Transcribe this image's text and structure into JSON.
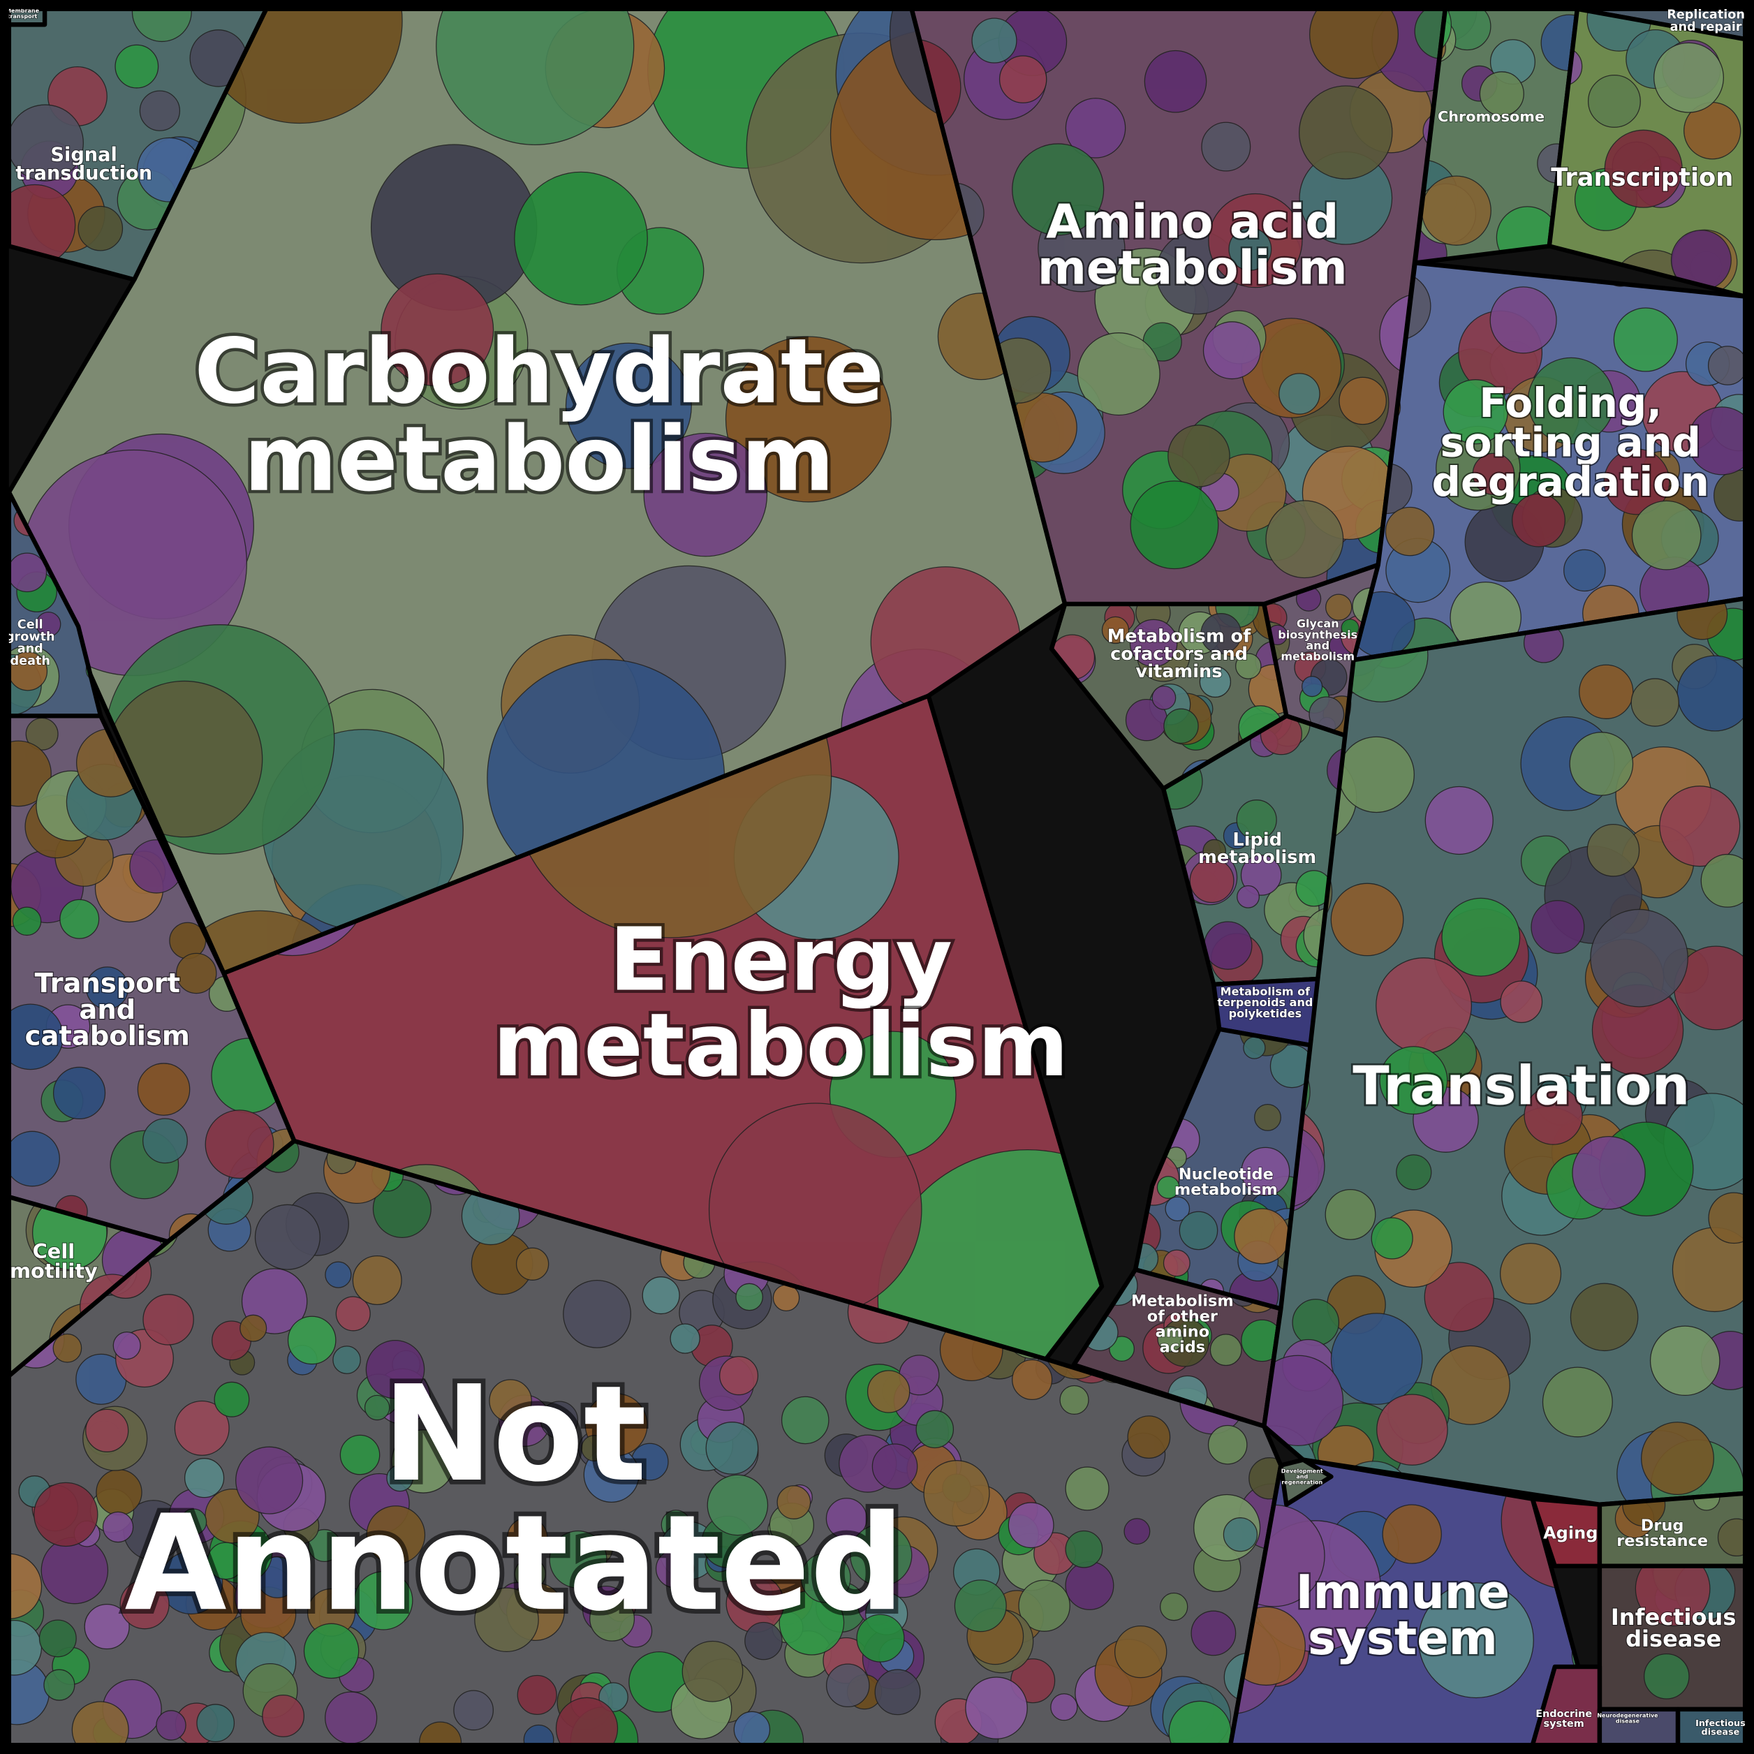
{
  "regions": [
    {
      "lines": [
        "Carbohydrate",
        "metabolism"
      ]
    },
    {
      "lines": [
        "Energy",
        "metabolism"
      ]
    },
    {
      "lines": [
        "Amino acid",
        "metabolism"
      ]
    },
    {
      "lines": [
        "Metabolism of",
        "cofactors and",
        "vitamins"
      ]
    },
    {
      "lines": [
        "Glycan",
        "biosynthesis",
        "and",
        "metabolism"
      ]
    },
    {
      "lines": [
        "Lipid",
        "metabolism"
      ]
    },
    {
      "lines": [
        "Metabolism of",
        "terpenoids and",
        "polyketides"
      ]
    },
    {
      "lines": [
        "Nucleotide",
        "metabolism"
      ]
    },
    {
      "lines": [
        "Metabolism",
        "of other",
        "amino",
        "acids"
      ]
    },
    {
      "lines": [
        "Signal",
        "transduction"
      ]
    },
    {
      "lines": [
        "Cell",
        "growth",
        "and",
        "death"
      ]
    },
    {
      "lines": [
        "Transport",
        "and",
        "catabolism"
      ]
    },
    {
      "lines": [
        "Cell",
        "motility"
      ]
    },
    {
      "lines": [
        "Not",
        "Annotated"
      ]
    },
    {
      "lines": [
        "Chromosome"
      ]
    },
    {
      "lines": [
        "Replication",
        "and repair"
      ]
    },
    {
      "lines": [
        "Transcription"
      ]
    },
    {
      "lines": [
        "Folding,",
        "sorting and",
        "degradation"
      ]
    },
    {
      "lines": [
        "Translation"
      ]
    },
    {
      "lines": [
        "Immune",
        "system"
      ]
    },
    {
      "lines": [
        "Aging"
      ]
    },
    {
      "lines": [
        "Drug",
        "resistance"
      ]
    },
    {
      "lines": [
        "Infectious",
        "disease"
      ]
    },
    {
      "lines": [
        "Endocrine",
        "system"
      ]
    },
    {
      "lines": [
        "Membrane",
        "transport"
      ]
    },
    {
      "lines": [
        "Development",
        "and",
        "regeneration"
      ]
    },
    {
      "lines": [
        "Neurodegenerative",
        "disease"
      ]
    },
    {
      "lines": [
        "Infectious",
        "disease"
      ]
    }
  ]
}
